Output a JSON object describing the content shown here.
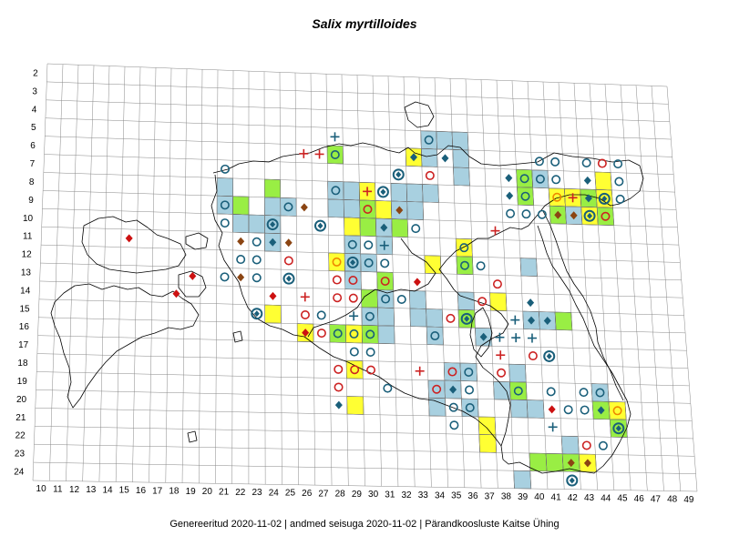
{
  "title": "Salix myrtilloides",
  "footer": {
    "generated": "Genereeritud 2020-11-02",
    "data_state": "andmed seisuga 2020-11-02",
    "publisher": "Pärandkoosluste Kaitse Ühing",
    "separator": "|"
  },
  "x_axis_labels": [
    "10",
    "11",
    "12",
    "13",
    "14",
    "15",
    "16",
    "17",
    "18",
    "19",
    "20",
    "21",
    "22",
    "23",
    "24",
    "25",
    "26",
    "27",
    "28",
    "29",
    "30",
    "31",
    "32",
    "33",
    "34",
    "35",
    "36",
    "37",
    "38",
    "39",
    "40",
    "41",
    "42",
    "43",
    "44",
    "45",
    "46",
    "47",
    "48",
    "49"
  ],
  "y_axis_labels": [
    "2",
    "3",
    "4",
    "5",
    "6",
    "7",
    "8",
    "9",
    "10",
    "11",
    "12",
    "13",
    "14",
    "15",
    "16",
    "17",
    "18",
    "19",
    "20",
    "21",
    "22",
    "23",
    "24"
  ],
  "colors": {
    "grid": "#888888",
    "coast": "#000000",
    "cell_blue": "#a8d0e0",
    "cell_green": "#99ee44",
    "cell_yellow": "#ffff33",
    "circle_blue": "#1a5f7a",
    "circle_red": "#cc2222",
    "circle_orange": "#ee8800",
    "diamond_red": "#cc1111",
    "diamond_brown": "#8b4513",
    "diamond_blue": "#1a5f7a",
    "plus_red": "#cc2222",
    "plus_blue": "#1a5f7a"
  },
  "cells": [
    {
      "c": 34,
      "r": 5,
      "k": "blue"
    },
    {
      "c": 35,
      "r": 5,
      "k": "blue"
    },
    {
      "c": 36,
      "r": 5,
      "k": "blue"
    },
    {
      "c": 34,
      "r": 6,
      "k": "blue"
    },
    {
      "c": 36,
      "r": 6,
      "k": "blue"
    },
    {
      "c": 33,
      "r": 6,
      "k": "yellow"
    },
    {
      "c": 28,
      "r": 6,
      "k": "green"
    },
    {
      "c": 36,
      "r": 7,
      "k": "blue"
    },
    {
      "c": 21,
      "r": 8,
      "k": "blue"
    },
    {
      "c": 24,
      "r": 8,
      "k": "green"
    },
    {
      "c": 28,
      "r": 8,
      "k": "blue"
    },
    {
      "c": 29,
      "r": 8,
      "k": "blue"
    },
    {
      "c": 30,
      "r": 8,
      "k": "yellow"
    },
    {
      "c": 32,
      "r": 8,
      "k": "blue"
    },
    {
      "c": 33,
      "r": 8,
      "k": "blue"
    },
    {
      "c": 34,
      "r": 8,
      "k": "blue"
    },
    {
      "c": 40,
      "r": 7,
      "k": "green"
    },
    {
      "c": 41,
      "r": 7,
      "k": "blue"
    },
    {
      "c": 42,
      "r": 8,
      "k": "yellow"
    },
    {
      "c": 43,
      "r": 8,
      "k": "yellow"
    },
    {
      "c": 44,
      "r": 8,
      "k": "green"
    },
    {
      "c": 45,
      "r": 7,
      "k": "yellow"
    },
    {
      "c": 45,
      "r": 8,
      "k": "yellow"
    },
    {
      "c": 40,
      "r": 8,
      "k": "green"
    },
    {
      "c": 42,
      "r": 9,
      "k": "green"
    },
    {
      "c": 43,
      "r": 9,
      "k": "blue"
    },
    {
      "c": 44,
      "r": 9,
      "k": "yellow"
    },
    {
      "c": 45,
      "r": 9,
      "k": "green"
    },
    {
      "c": 21,
      "r": 9,
      "k": "blue"
    },
    {
      "c": 22,
      "r": 9,
      "k": "green"
    },
    {
      "c": 24,
      "r": 9,
      "k": "blue"
    },
    {
      "c": 25,
      "r": 9,
      "k": "blue"
    },
    {
      "c": 28,
      "r": 9,
      "k": "blue"
    },
    {
      "c": 29,
      "r": 9,
      "k": "blue"
    },
    {
      "c": 30,
      "r": 9,
      "k": "green"
    },
    {
      "c": 31,
      "r": 9,
      "k": "yellow"
    },
    {
      "c": 32,
      "r": 9,
      "k": "blue"
    },
    {
      "c": 33,
      "r": 9,
      "k": "blue"
    },
    {
      "c": 22,
      "r": 10,
      "k": "blue"
    },
    {
      "c": 23,
      "r": 10,
      "k": "blue"
    },
    {
      "c": 24,
      "r": 10,
      "k": "blue"
    },
    {
      "c": 29,
      "r": 10,
      "k": "yellow"
    },
    {
      "c": 30,
      "r": 10,
      "k": "green"
    },
    {
      "c": 31,
      "r": 10,
      "k": "blue"
    },
    {
      "c": 32,
      "r": 10,
      "k": "green"
    },
    {
      "c": 24,
      "r": 11,
      "k": "blue"
    },
    {
      "c": 29,
      "r": 11,
      "k": "blue"
    },
    {
      "c": 31,
      "r": 11,
      "k": "blue"
    },
    {
      "c": 36,
      "r": 11,
      "k": "yellow"
    },
    {
      "c": 28,
      "r": 12,
      "k": "yellow"
    },
    {
      "c": 29,
      "r": 12,
      "k": "blue"
    },
    {
      "c": 30,
      "r": 12,
      "k": "blue"
    },
    {
      "c": 34,
      "r": 12,
      "k": "yellow"
    },
    {
      "c": 36,
      "r": 12,
      "k": "green"
    },
    {
      "c": 40,
      "r": 12,
      "k": "blue"
    },
    {
      "c": 29,
      "r": 13,
      "k": "blue"
    },
    {
      "c": 31,
      "r": 13,
      "k": "green"
    },
    {
      "c": 24,
      "r": 15,
      "k": "yellow"
    },
    {
      "c": 30,
      "r": 14,
      "k": "green"
    },
    {
      "c": 31,
      "r": 14,
      "k": "blue"
    },
    {
      "c": 33,
      "r": 14,
      "k": "blue"
    },
    {
      "c": 36,
      "r": 14,
      "k": "blue"
    },
    {
      "c": 38,
      "r": 14,
      "k": "yellow"
    },
    {
      "c": 30,
      "r": 15,
      "k": "blue"
    },
    {
      "c": 31,
      "r": 15,
      "k": "blue"
    },
    {
      "c": 33,
      "r": 15,
      "k": "blue"
    },
    {
      "c": 34,
      "r": 15,
      "k": "blue"
    },
    {
      "c": 36,
      "r": 15,
      "k": "green"
    },
    {
      "c": 40,
      "r": 15,
      "k": "blue"
    },
    {
      "c": 41,
      "r": 15,
      "k": "blue"
    },
    {
      "c": 42,
      "r": 15,
      "k": "green"
    },
    {
      "c": 26,
      "r": 16,
      "k": "yellow"
    },
    {
      "c": 28,
      "r": 16,
      "k": "green"
    },
    {
      "c": 29,
      "r": 16,
      "k": "yellow"
    },
    {
      "c": 30,
      "r": 16,
      "k": "green"
    },
    {
      "c": 31,
      "r": 16,
      "k": "blue"
    },
    {
      "c": 34,
      "r": 16,
      "k": "blue"
    },
    {
      "c": 37,
      "r": 16,
      "k": "blue"
    },
    {
      "c": 29,
      "r": 18,
      "k": "yellow"
    },
    {
      "c": 35,
      "r": 18,
      "k": "blue"
    },
    {
      "c": 36,
      "r": 18,
      "k": "blue"
    },
    {
      "c": 39,
      "r": 18,
      "k": "blue"
    },
    {
      "c": 34,
      "r": 19,
      "k": "blue"
    },
    {
      "c": 35,
      "r": 19,
      "k": "blue"
    },
    {
      "c": 38,
      "r": 19,
      "k": "blue"
    },
    {
      "c": 39,
      "r": 19,
      "k": "green"
    },
    {
      "c": 44,
      "r": 19,
      "k": "blue"
    },
    {
      "c": 29,
      "r": 20,
      "k": "yellow"
    },
    {
      "c": 34,
      "r": 20,
      "k": "blue"
    },
    {
      "c": 36,
      "r": 20,
      "k": "blue"
    },
    {
      "c": 39,
      "r": 20,
      "k": "blue"
    },
    {
      "c": 40,
      "r": 20,
      "k": "blue"
    },
    {
      "c": 44,
      "r": 20,
      "k": "green"
    },
    {
      "c": 45,
      "r": 20,
      "k": "yellow"
    },
    {
      "c": 37,
      "r": 21,
      "k": "yellow"
    },
    {
      "c": 45,
      "r": 21,
      "k": "green"
    },
    {
      "c": 37,
      "r": 22,
      "k": "yellow"
    },
    {
      "c": 42,
      "r": 22,
      "k": "blue"
    },
    {
      "c": 40,
      "r": 23,
      "k": "green"
    },
    {
      "c": 41,
      "r": 23,
      "k": "green"
    },
    {
      "c": 42,
      "r": 23,
      "k": "green"
    },
    {
      "c": 43,
      "r": 23,
      "k": "yellow"
    },
    {
      "c": 39,
      "r": 24,
      "k": "blue"
    }
  ],
  "markers": [
    {
      "c": 28,
      "r": 5,
      "t": "plus",
      "k": "blue"
    },
    {
      "c": 34,
      "r": 5,
      "t": "circle",
      "k": "blue"
    },
    {
      "c": 26,
      "r": 6,
      "t": "plus",
      "k": "red"
    },
    {
      "c": 27,
      "r": 6,
      "t": "plus",
      "k": "red"
    },
    {
      "c": 28,
      "r": 6,
      "t": "circle",
      "k": "blue"
    },
    {
      "c": 33,
      "r": 6,
      "t": "diamond",
      "k": "blue"
    },
    {
      "c": 35,
      "r": 6,
      "t": "diamond",
      "k": "blue"
    },
    {
      "c": 41,
      "r": 6,
      "t": "circle",
      "k": "blue"
    },
    {
      "c": 42,
      "r": 6,
      "t": "circle",
      "k": "blue"
    },
    {
      "c": 44,
      "r": 6,
      "t": "circle",
      "k": "blue"
    },
    {
      "c": 45,
      "r": 6,
      "t": "circle",
      "k": "red"
    },
    {
      "c": 46,
      "r": 6,
      "t": "circle",
      "k": "blue"
    },
    {
      "c": 21,
      "r": 7,
      "t": "circle",
      "k": "blue"
    },
    {
      "c": 32,
      "r": 7,
      "t": "circle-diamond",
      "k": "blue"
    },
    {
      "c": 34,
      "r": 7,
      "t": "circle",
      "k": "red"
    },
    {
      "c": 39,
      "r": 7,
      "t": "diamond",
      "k": "blue"
    },
    {
      "c": 40,
      "r": 7,
      "t": "circle",
      "k": "blue"
    },
    {
      "c": 41,
      "r": 7,
      "t": "circle",
      "k": "blue"
    },
    {
      "c": 42,
      "r": 7,
      "t": "circle",
      "k": "blue"
    },
    {
      "c": 44,
      "r": 7,
      "t": "diamond",
      "k": "blue"
    },
    {
      "c": 46,
      "r": 7,
      "t": "circle",
      "k": "blue"
    },
    {
      "c": 28,
      "r": 8,
      "t": "circle",
      "k": "blue"
    },
    {
      "c": 30,
      "r": 8,
      "t": "plus",
      "k": "red"
    },
    {
      "c": 31,
      "r": 8,
      "t": "circle-diamond",
      "k": "blue"
    },
    {
      "c": 39,
      "r": 8,
      "t": "diamond",
      "k": "blue"
    },
    {
      "c": 40,
      "r": 8,
      "t": "circle",
      "k": "blue"
    },
    {
      "c": 42,
      "r": 8,
      "t": "circle",
      "k": "orange"
    },
    {
      "c": 43,
      "r": 8,
      "t": "plus",
      "k": "red"
    },
    {
      "c": 44,
      "r": 8,
      "t": "diamond",
      "k": "blue"
    },
    {
      "c": 45,
      "r": 8,
      "t": "circle-diamond",
      "k": "blue"
    },
    {
      "c": 46,
      "r": 8,
      "t": "circle",
      "k": "blue"
    },
    {
      "c": 21,
      "r": 9,
      "t": "circle",
      "k": "blue"
    },
    {
      "c": 25,
      "r": 9,
      "t": "circle",
      "k": "blue"
    },
    {
      "c": 26,
      "r": 9,
      "t": "diamond",
      "k": "brown"
    },
    {
      "c": 30,
      "r": 9,
      "t": "circle",
      "k": "red"
    },
    {
      "c": 32,
      "r": 9,
      "t": "diamond",
      "k": "brown"
    },
    {
      "c": 39,
      "r": 9,
      "t": "circle",
      "k": "blue"
    },
    {
      "c": 40,
      "r": 9,
      "t": "circle",
      "k": "blue"
    },
    {
      "c": 41,
      "r": 9,
      "t": "circle",
      "k": "blue"
    },
    {
      "c": 42,
      "r": 9,
      "t": "diamond",
      "k": "brown"
    },
    {
      "c": 43,
      "r": 9,
      "t": "diamond",
      "k": "brown"
    },
    {
      "c": 44,
      "r": 9,
      "t": "circle-diamond",
      "k": "blue"
    },
    {
      "c": 45,
      "r": 9,
      "t": "circle",
      "k": "red"
    },
    {
      "c": 21,
      "r": 10,
      "t": "circle",
      "k": "blue"
    },
    {
      "c": 24,
      "r": 10,
      "t": "circle-diamond",
      "k": "blue"
    },
    {
      "c": 27,
      "r": 10,
      "t": "circle-diamond",
      "k": "blue"
    },
    {
      "c": 31,
      "r": 10,
      "t": "diamond",
      "k": "blue"
    },
    {
      "c": 33,
      "r": 10,
      "t": "circle",
      "k": "blue"
    },
    {
      "c": 38,
      "r": 10,
      "t": "plus",
      "k": "red"
    },
    {
      "c": 15,
      "r": 11,
      "t": "diamond",
      "k": "red"
    },
    {
      "c": 22,
      "r": 11,
      "t": "diamond",
      "k": "brown"
    },
    {
      "c": 23,
      "r": 11,
      "t": "circle",
      "k": "blue"
    },
    {
      "c": 24,
      "r": 11,
      "t": "diamond",
      "k": "blue"
    },
    {
      "c": 25,
      "r": 11,
      "t": "diamond",
      "k": "brown"
    },
    {
      "c": 29,
      "r": 11,
      "t": "circle",
      "k": "blue"
    },
    {
      "c": 30,
      "r": 11,
      "t": "circle",
      "k": "blue"
    },
    {
      "c": 31,
      "r": 11,
      "t": "plus",
      "k": "blue"
    },
    {
      "c": 36,
      "r": 11,
      "t": "circle",
      "k": "blue"
    },
    {
      "c": 22,
      "r": 12,
      "t": "circle",
      "k": "blue"
    },
    {
      "c": 23,
      "r": 12,
      "t": "circle",
      "k": "blue"
    },
    {
      "c": 25,
      "r": 12,
      "t": "circle",
      "k": "red"
    },
    {
      "c": 28,
      "r": 12,
      "t": "circle",
      "k": "orange"
    },
    {
      "c": 29,
      "r": 12,
      "t": "circle-diamond",
      "k": "blue"
    },
    {
      "c": 30,
      "r": 12,
      "t": "circle",
      "k": "blue"
    },
    {
      "c": 31,
      "r": 12,
      "t": "circle",
      "k": "blue"
    },
    {
      "c": 36,
      "r": 12,
      "t": "circle",
      "k": "blue"
    },
    {
      "c": 37,
      "r": 12,
      "t": "circle",
      "k": "blue"
    },
    {
      "c": 19,
      "r": 13,
      "t": "diamond",
      "k": "red"
    },
    {
      "c": 21,
      "r": 13,
      "t": "circle",
      "k": "blue"
    },
    {
      "c": 22,
      "r": 13,
      "t": "diamond",
      "k": "brown"
    },
    {
      "c": 23,
      "r": 13,
      "t": "circle",
      "k": "blue"
    },
    {
      "c": 25,
      "r": 13,
      "t": "circle-diamond",
      "k": "blue"
    },
    {
      "c": 28,
      "r": 13,
      "t": "circle",
      "k": "red"
    },
    {
      "c": 29,
      "r": 13,
      "t": "circle",
      "k": "red"
    },
    {
      "c": 31,
      "r": 13,
      "t": "circle",
      "k": "red"
    },
    {
      "c": 33,
      "r": 13,
      "t": "diamond",
      "k": "red"
    },
    {
      "c": 38,
      "r": 13,
      "t": "circle",
      "k": "red"
    },
    {
      "c": 18,
      "r": 14,
      "t": "diamond",
      "k": "red"
    },
    {
      "c": 24,
      "r": 14,
      "t": "diamond",
      "k": "red"
    },
    {
      "c": 26,
      "r": 14,
      "t": "plus",
      "k": "red"
    },
    {
      "c": 28,
      "r": 14,
      "t": "circle",
      "k": "red"
    },
    {
      "c": 29,
      "r": 14,
      "t": "circle",
      "k": "red"
    },
    {
      "c": 31,
      "r": 14,
      "t": "circle",
      "k": "blue"
    },
    {
      "c": 32,
      "r": 14,
      "t": "circle",
      "k": "blue"
    },
    {
      "c": 37,
      "r": 14,
      "t": "circle",
      "k": "red"
    },
    {
      "c": 40,
      "r": 14,
      "t": "diamond",
      "k": "blue"
    },
    {
      "c": 23,
      "r": 15,
      "t": "circle-diamond",
      "k": "blue"
    },
    {
      "c": 26,
      "r": 15,
      "t": "circle",
      "k": "red"
    },
    {
      "c": 27,
      "r": 15,
      "t": "circle",
      "k": "blue"
    },
    {
      "c": 29,
      "r": 15,
      "t": "plus",
      "k": "blue"
    },
    {
      "c": 30,
      "r": 15,
      "t": "circle",
      "k": "blue"
    },
    {
      "c": 35,
      "r": 15,
      "t": "circle",
      "k": "red"
    },
    {
      "c": 36,
      "r": 15,
      "t": "circle-diamond",
      "k": "blue"
    },
    {
      "c": 39,
      "r": 15,
      "t": "plus",
      "k": "blue"
    },
    {
      "c": 40,
      "r": 15,
      "t": "diamond",
      "k": "blue"
    },
    {
      "c": 41,
      "r": 15,
      "t": "diamond",
      "k": "blue"
    },
    {
      "c": 26,
      "r": 16,
      "t": "diamond",
      "k": "red"
    },
    {
      "c": 27,
      "r": 16,
      "t": "circle",
      "k": "red"
    },
    {
      "c": 28,
      "r": 16,
      "t": "circle",
      "k": "blue"
    },
    {
      "c": 29,
      "r": 16,
      "t": "circle",
      "k": "blue"
    },
    {
      "c": 30,
      "r": 16,
      "t": "circle",
      "k": "blue"
    },
    {
      "c": 34,
      "r": 16,
      "t": "circle",
      "k": "blue"
    },
    {
      "c": 37,
      "r": 16,
      "t": "diamond",
      "k": "blue"
    },
    {
      "c": 38,
      "r": 16,
      "t": "plus",
      "k": "blue"
    },
    {
      "c": 39,
      "r": 16,
      "t": "plus",
      "k": "blue"
    },
    {
      "c": 40,
      "r": 16,
      "t": "plus",
      "k": "blue"
    },
    {
      "c": 29,
      "r": 17,
      "t": "circle",
      "k": "blue"
    },
    {
      "c": 30,
      "r": 17,
      "t": "circle",
      "k": "blue"
    },
    {
      "c": 38,
      "r": 17,
      "t": "plus",
      "k": "red"
    },
    {
      "c": 40,
      "r": 17,
      "t": "circle",
      "k": "red"
    },
    {
      "c": 41,
      "r": 17,
      "t": "circle-diamond",
      "k": "blue"
    },
    {
      "c": 28,
      "r": 18,
      "t": "circle",
      "k": "red"
    },
    {
      "c": 29,
      "r": 18,
      "t": "circle",
      "k": "red"
    },
    {
      "c": 30,
      "r": 18,
      "t": "circle",
      "k": "red"
    },
    {
      "c": 33,
      "r": 18,
      "t": "plus",
      "k": "red"
    },
    {
      "c": 35,
      "r": 18,
      "t": "circle",
      "k": "red"
    },
    {
      "c": 36,
      "r": 18,
      "t": "circle",
      "k": "blue"
    },
    {
      "c": 38,
      "r": 18,
      "t": "circle",
      "k": "red"
    },
    {
      "c": 28,
      "r": 19,
      "t": "circle",
      "k": "red"
    },
    {
      "c": 31,
      "r": 19,
      "t": "circle",
      "k": "blue"
    },
    {
      "c": 34,
      "r": 19,
      "t": "circle",
      "k": "red"
    },
    {
      "c": 35,
      "r": 19,
      "t": "diamond",
      "k": "blue"
    },
    {
      "c": 36,
      "r": 19,
      "t": "circle",
      "k": "blue"
    },
    {
      "c": 39,
      "r": 19,
      "t": "circle",
      "k": "blue"
    },
    {
      "c": 41,
      "r": 19,
      "t": "circle",
      "k": "blue"
    },
    {
      "c": 43,
      "r": 19,
      "t": "circle",
      "k": "blue"
    },
    {
      "c": 44,
      "r": 19,
      "t": "circle",
      "k": "blue"
    },
    {
      "c": 28,
      "r": 20,
      "t": "diamond",
      "k": "blue"
    },
    {
      "c": 35,
      "r": 20,
      "t": "circle",
      "k": "blue"
    },
    {
      "c": 36,
      "r": 20,
      "t": "circle",
      "k": "blue"
    },
    {
      "c": 41,
      "r": 20,
      "t": "diamond",
      "k": "red"
    },
    {
      "c": 42,
      "r": 20,
      "t": "circle",
      "k": "blue"
    },
    {
      "c": 43,
      "r": 20,
      "t": "circle",
      "k": "blue"
    },
    {
      "c": 44,
      "r": 20,
      "t": "diamond",
      "k": "blue"
    },
    {
      "c": 45,
      "r": 20,
      "t": "circle",
      "k": "orange"
    },
    {
      "c": 35,
      "r": 21,
      "t": "circle",
      "k": "blue"
    },
    {
      "c": 41,
      "r": 21,
      "t": "plus",
      "k": "blue"
    },
    {
      "c": 45,
      "r": 21,
      "t": "circle-diamond",
      "k": "blue"
    },
    {
      "c": 43,
      "r": 22,
      "t": "circle",
      "k": "red"
    },
    {
      "c": 44,
      "r": 22,
      "t": "circle",
      "k": "blue"
    },
    {
      "c": 42,
      "r": 23,
      "t": "diamond",
      "k": "brown"
    },
    {
      "c": 43,
      "r": 23,
      "t": "diamond",
      "k": "brown"
    },
    {
      "c": 42,
      "r": 24,
      "t": "circle-diamond",
      "k": "blue"
    }
  ]
}
